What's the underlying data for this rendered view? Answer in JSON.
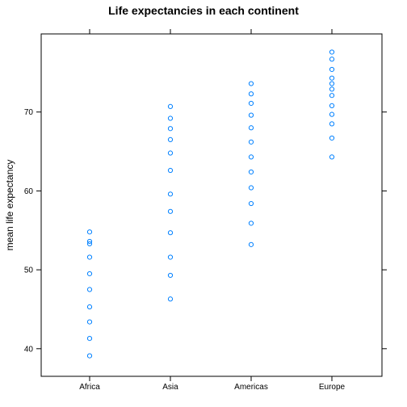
{
  "chart_data": {
    "type": "scatter",
    "title": "Life expectancies in each continent",
    "xlabel": "",
    "ylabel": "mean life expectancy",
    "categories": [
      "Africa",
      "Asia",
      "Americas",
      "Europe"
    ],
    "series": [
      {
        "values": [
          [
            54.8,
            53.6,
            53.3,
            51.6,
            49.5,
            47.5,
            45.3,
            43.4,
            41.3,
            39.1
          ],
          [
            70.7,
            69.2,
            67.9,
            66.5,
            64.8,
            62.6,
            59.6,
            57.4,
            54.7,
            51.6,
            49.3,
            46.3
          ],
          [
            73.6,
            72.3,
            71.1,
            69.6,
            68.0,
            66.2,
            64.3,
            62.4,
            60.4,
            58.4,
            55.9,
            53.2
          ],
          [
            77.6,
            76.7,
            75.4,
            74.3,
            73.6,
            72.9,
            72.1,
            70.8,
            69.7,
            68.5,
            66.7,
            64.3
          ]
        ]
      }
    ],
    "yticks": [
      40,
      50,
      60,
      70
    ],
    "ylim": [
      36.5,
      79.9
    ],
    "grid": false,
    "legend": "none",
    "marker": "open-circle",
    "colors": {
      "point": "#0080ff",
      "axis": "#000000",
      "background": "#ffffff"
    }
  }
}
